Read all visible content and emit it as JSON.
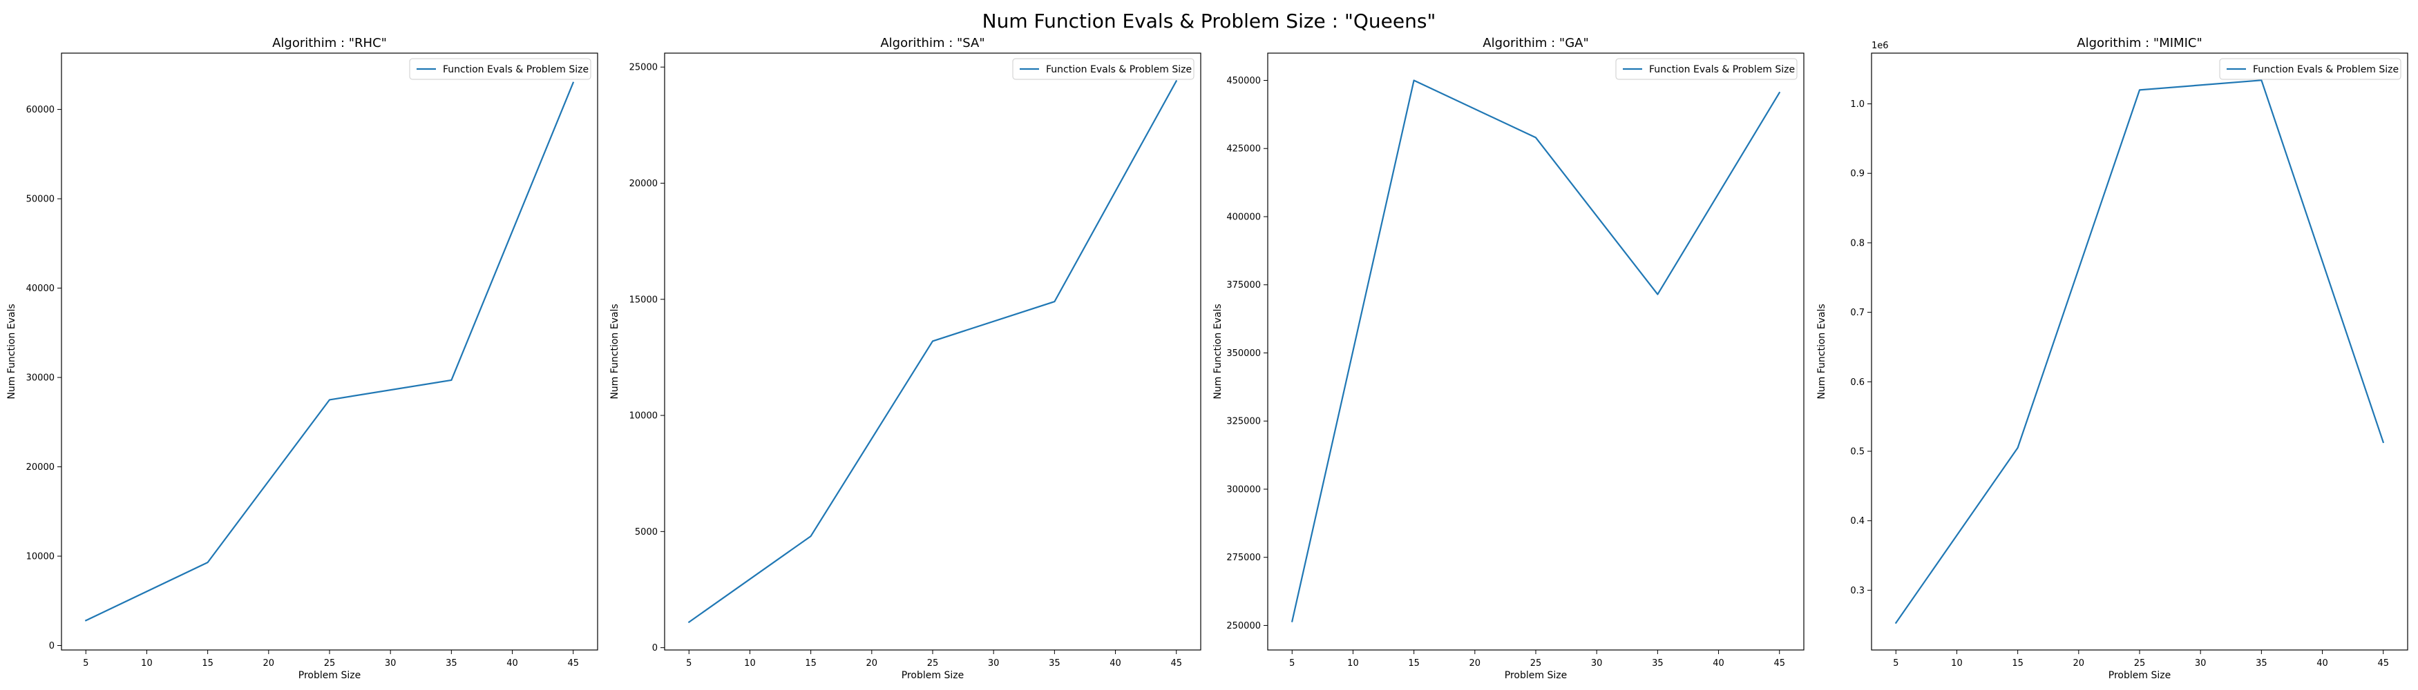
{
  "figure": {
    "suptitle": "Num Function Evals & Problem Size : \"Queens\"",
    "line_color": "#1f77b4"
  },
  "chart_data": [
    {
      "type": "line",
      "title": "Algorithim : \"RHC\"",
      "xlabel": "Problem Size",
      "ylabel": "Num Function Evals",
      "x": [
        5,
        15,
        25,
        35,
        45
      ],
      "series": [
        {
          "name": "Function Evals & Problem Size",
          "values": [
            2800,
            9300,
            27500,
            29700,
            63000
          ]
        }
      ],
      "xlim": [
        3,
        47
      ],
      "ylim": [
        -500,
        66300
      ],
      "xticks": [
        5,
        10,
        15,
        20,
        25,
        30,
        35,
        40,
        45
      ],
      "yticks": [
        0,
        10000,
        20000,
        30000,
        40000,
        50000,
        60000
      ],
      "ytick_labels": [
        "0",
        "10000",
        "20000",
        "30000",
        "40000",
        "50000",
        "60000"
      ],
      "y_offset_text": "",
      "legend": "top-right",
      "grid": false
    },
    {
      "type": "line",
      "title": "Algorithim : \"SA\"",
      "xlabel": "Problem Size",
      "ylabel": "Num Function Evals",
      "x": [
        5,
        15,
        25,
        35,
        45
      ],
      "series": [
        {
          "name": "Function Evals & Problem Size",
          "values": [
            1100,
            4800,
            13200,
            14900,
            24400
          ]
        }
      ],
      "xlim": [
        3,
        47
      ],
      "ylim": [
        -100,
        25600
      ],
      "xticks": [
        5,
        10,
        15,
        20,
        25,
        30,
        35,
        40,
        45
      ],
      "yticks": [
        0,
        5000,
        10000,
        15000,
        20000,
        25000
      ],
      "ytick_labels": [
        "0",
        "5000",
        "10000",
        "15000",
        "20000",
        "25000"
      ],
      "y_offset_text": "",
      "legend": "top-right",
      "grid": false
    },
    {
      "type": "line",
      "title": "Algorithim : \"GA\"",
      "xlabel": "Problem Size",
      "ylabel": "Num Function Evals",
      "x": [
        5,
        15,
        25,
        35,
        45
      ],
      "series": [
        {
          "name": "Function Evals & Problem Size",
          "values": [
            251500,
            450000,
            429000,
            371500,
            445500
          ]
        }
      ],
      "xlim": [
        3,
        47
      ],
      "ylim": [
        241000,
        460000
      ],
      "xticks": [
        5,
        10,
        15,
        20,
        25,
        30,
        35,
        40,
        45
      ],
      "yticks": [
        250000,
        275000,
        300000,
        325000,
        350000,
        375000,
        400000,
        425000,
        450000
      ],
      "ytick_labels": [
        "250000",
        "275000",
        "300000",
        "325000",
        "350000",
        "375000",
        "400000",
        "425000",
        "450000"
      ],
      "y_offset_text": "",
      "legend": "top-right",
      "grid": false
    },
    {
      "type": "line",
      "title": "Algorithim : \"MIMIC\"",
      "xlabel": "Problem Size",
      "ylabel": "Num Function Evals",
      "x": [
        5,
        15,
        25,
        35,
        45
      ],
      "series": [
        {
          "name": "Function Evals & Problem Size",
          "values": [
            253000,
            505000,
            1020000,
            1034000,
            513000
          ]
        }
      ],
      "xlim": [
        3,
        47
      ],
      "ylim": [
        214000,
        1073000
      ],
      "xticks": [
        5,
        10,
        15,
        20,
        25,
        30,
        35,
        40,
        45
      ],
      "yticks": [
        300000,
        400000,
        500000,
        600000,
        700000,
        800000,
        900000,
        1000000
      ],
      "ytick_labels": [
        "0.3",
        "0.4",
        "0.5",
        "0.6",
        "0.7",
        "0.8",
        "0.9",
        "1.0"
      ],
      "y_offset_text": "1e6",
      "legend": "top-right",
      "grid": false
    }
  ]
}
